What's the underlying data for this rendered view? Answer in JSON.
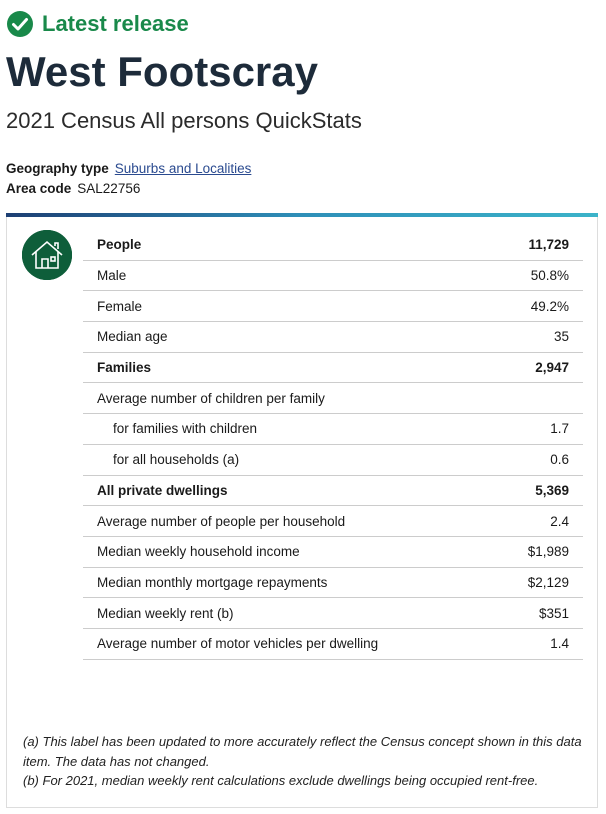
{
  "header": {
    "badge": "Latest release",
    "title": "West Footscray",
    "subtitle": "2021 Census All persons QuickStats"
  },
  "meta": [
    {
      "label": "Geography type",
      "value": "Suburbs and Localities"
    },
    {
      "label": "Area code",
      "value": "SAL22756"
    }
  ],
  "sections": [
    {
      "rows": [
        {
          "label": "People",
          "value": "11,729"
        },
        {
          "label": "Male",
          "value": "50.8%"
        },
        {
          "label": "Female",
          "value": "49.2%"
        },
        {
          "label": "Median age",
          "value": "35"
        }
      ]
    },
    {
      "rows": [
        {
          "label": "Families",
          "value": "2,947"
        },
        {
          "label": "Average number of children per family",
          "items": [
            {
              "label": "for families with children",
              "value": "1.7"
            },
            {
              "label": "for all households (a)",
              "value": "0.6"
            }
          ]
        }
      ]
    },
    {
      "rows": [
        {
          "label": "All private dwellings",
          "value": "5,369"
        },
        {
          "label": "Average number of people per household",
          "value": "2.4"
        },
        {
          "label": "Median weekly household income",
          "value": "$1,989"
        },
        {
          "label": "Median monthly mortgage repayments",
          "value": "$2,129"
        },
        {
          "label": "Median weekly rent (b)",
          "value": "$351"
        },
        {
          "label": "Average number of motor vehicles per dwelling",
          "value": "1.4"
        }
      ]
    }
  ],
  "footnotes": [
    "(a) This label has been updated to more accurately reflect the Census concept shown in this data item. The data has not changed.",
    "(b) For 2021, median weekly rent calculations exclude dwellings being occupied rent-free."
  ]
}
